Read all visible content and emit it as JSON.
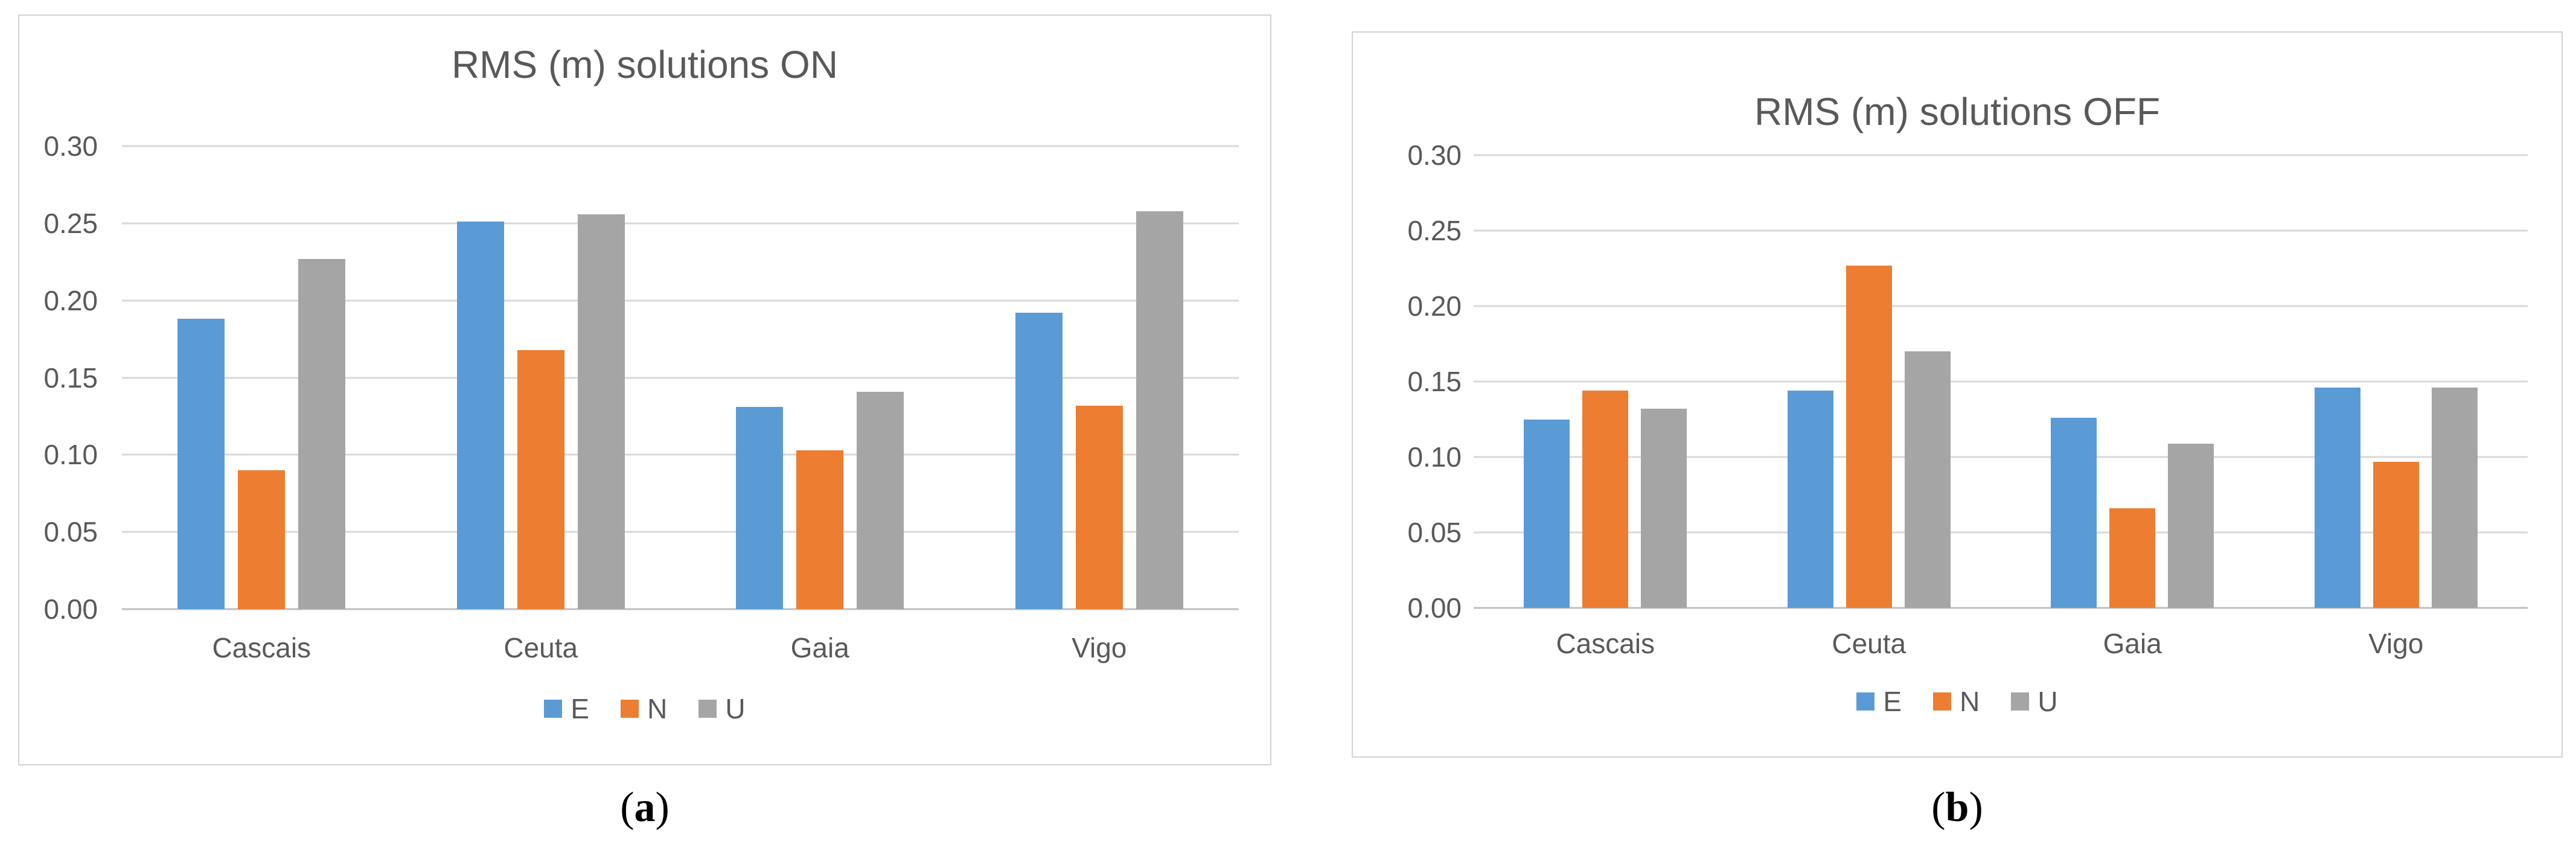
{
  "figure": {
    "background": "#FFFFFF"
  },
  "style": {
    "text_color": "#595959",
    "gridline_color": "#D9D9D9",
    "axis_line_color": "#BFBFBF",
    "panel_border_color": "#D2D2D2",
    "series_colors": {
      "E": "#5B9BD5",
      "N": "#ED7D31",
      "U": "#A5A5A5"
    }
  },
  "chart_data": [
    {
      "type": "bar",
      "title": "RMS (m) solutions ON",
      "caption": {
        "open": "(",
        "letter": "a",
        "close": ")"
      },
      "categories": [
        "Cascais",
        "Ceuta",
        "Gaia",
        "Vigo"
      ],
      "series": [
        {
          "name": "E",
          "color": "#5B9BD5",
          "values": [
            0.188,
            0.251,
            0.131,
            0.192
          ]
        },
        {
          "name": "N",
          "color": "#ED7D31",
          "values": [
            0.09,
            0.168,
            0.103,
            0.132
          ]
        },
        {
          "name": "U",
          "color": "#A5A5A5",
          "values": [
            0.227,
            0.256,
            0.141,
            0.258
          ]
        }
      ],
      "xlabel": "",
      "ylabel": "",
      "ylim": [
        0,
        0.32
      ],
      "yticks": [
        "0.00",
        "0.05",
        "0.10",
        "0.15",
        "0.20",
        "0.25",
        "0.30"
      ],
      "grid": true,
      "legend_position": "bottom"
    },
    {
      "type": "bar",
      "title": "RMS (m) solutions OFF",
      "caption": {
        "open": "(",
        "letter": "b",
        "close": ")"
      },
      "categories": [
        "Cascais",
        "Ceuta",
        "Gaia",
        "Vigo"
      ],
      "series": [
        {
          "name": "E",
          "color": "#5B9BD5",
          "values": [
            0.125,
            0.144,
            0.126,
            0.146
          ]
        },
        {
          "name": "N",
          "color": "#ED7D31",
          "values": [
            0.144,
            0.227,
            0.066,
            0.097
          ]
        },
        {
          "name": "U",
          "color": "#A5A5A5",
          "values": [
            0.132,
            0.17,
            0.109,
            0.146
          ]
        }
      ],
      "xlabel": "",
      "ylabel": "",
      "ylim": [
        0,
        0.32
      ],
      "yticks": [
        "0.00",
        "0.05",
        "0.10",
        "0.15",
        "0.20",
        "0.25",
        "0.30"
      ],
      "grid": true,
      "legend_position": "bottom"
    }
  ]
}
